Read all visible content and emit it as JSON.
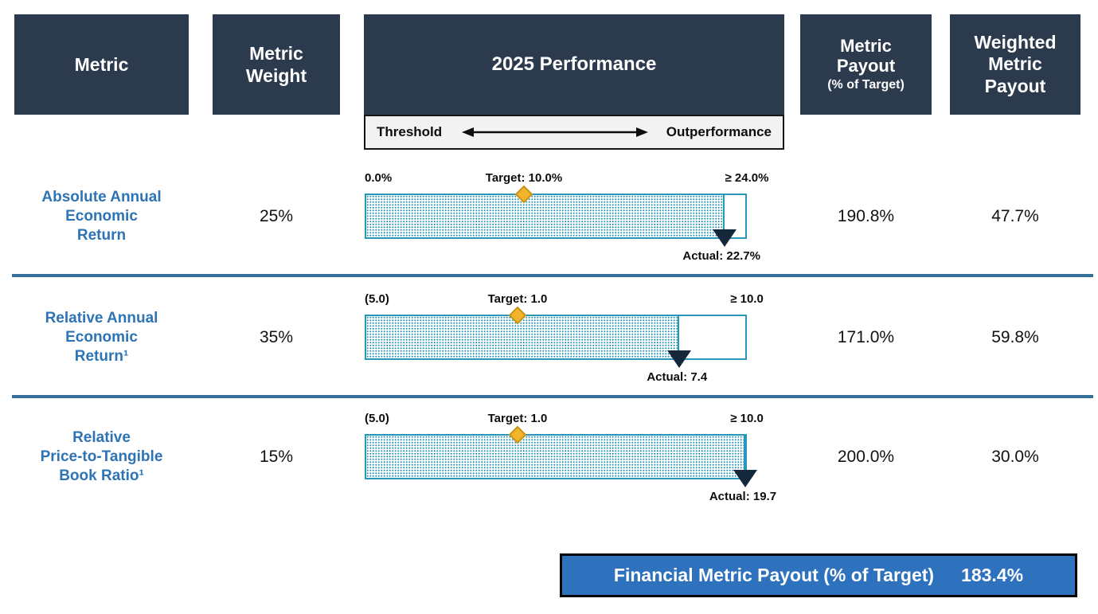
{
  "colors": {
    "header_navy": "#2B3A4D",
    "metric_name_blue": "#2E74B5",
    "bar_teal": "#2996BA",
    "target_diamond_gold": "#F3B32A",
    "actual_marker_navy": "#15273A",
    "divider_blue": "#35709B",
    "banner_blue": "#2E72BE",
    "strip_gray": "#F2F2F2"
  },
  "header": {
    "metric": "Metric",
    "metric_weight": "Metric\nWeight",
    "performance": "2025 Performance",
    "metric_payout": "Metric\nPayout",
    "metric_payout_sub": "(% of Target)",
    "weighted_metric_payout": "Weighted\nMetric\nPayout"
  },
  "scale_strip": {
    "left_label": "Threshold",
    "right_label": "Outperformance",
    "arrow_icon": "double-headed-arrow"
  },
  "chart_data": {
    "type": "bar",
    "subtype": "bullet",
    "rows": [
      {
        "metric": "Absolute Annual\nEconomic\nReturn",
        "weight": "25%",
        "scale_min": 0.0,
        "scale_max": 24.0,
        "target": 10.0,
        "actual": 22.7,
        "scale_min_label": "0.0%",
        "target_label": "Target: 10.0%",
        "scale_max_label": "≥ 24.0%",
        "actual_label": "Actual: 22.7%",
        "metric_payout": "190.8%",
        "weighted_payout": "47.7%"
      },
      {
        "metric": "Relative Annual\nEconomic\nReturn¹",
        "weight": "35%",
        "scale_min": -5.0,
        "scale_max": 10.0,
        "target": 1.0,
        "actual": 7.4,
        "scale_min_label": "(5.0)",
        "target_label": "Target: 1.0",
        "scale_max_label": "≥ 10.0",
        "actual_label": "Actual: 7.4",
        "metric_payout": "171.0%",
        "weighted_payout": "59.8%"
      },
      {
        "metric": "Relative\nPrice-to-Tangible\nBook Ratio¹",
        "weight": "15%",
        "scale_min": -5.0,
        "scale_max": 10.0,
        "target": 1.0,
        "actual": 19.7,
        "scale_min_label": "(5.0)",
        "target_label": "Target: 1.0",
        "scale_max_label": "≥ 10.0",
        "actual_label": "Actual: 19.7",
        "metric_payout": "200.0%",
        "weighted_payout": "30.0%"
      }
    ],
    "title": "2025 Performance",
    "legend": [
      "Threshold",
      "Outperformance"
    ],
    "summary_total": "183.4%"
  },
  "summary": {
    "label": "Financial Metric Payout (% of Target)",
    "value": "183.4%"
  }
}
